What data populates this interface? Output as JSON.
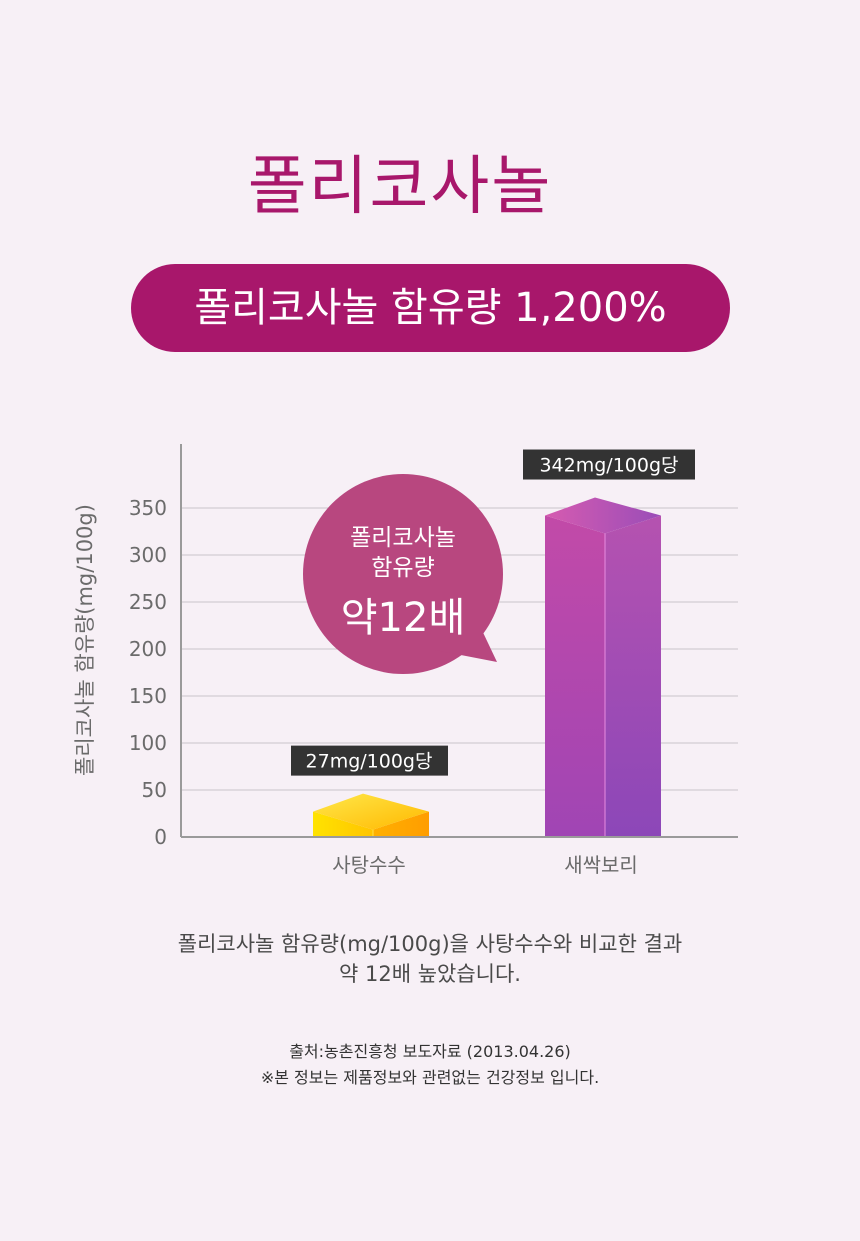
{
  "header": {
    "title": "폴리코사놀",
    "banner": "폴리코사놀 함유량 1,200%"
  },
  "chart_data": {
    "type": "bar",
    "ylabel": "폴리코사놀 함유량(mg/100g)",
    "ylim": [
      0,
      400
    ],
    "yticks": [
      0,
      50,
      100,
      150,
      200,
      250,
      300,
      350
    ],
    "grid": true,
    "categories": [
      "사탕수수",
      "새싹보리"
    ],
    "values": [
      27,
      342
    ],
    "value_labels": [
      "27mg/100g당",
      "342mg/100g당"
    ],
    "bar_colors": [
      "#ffb300",
      "#b34bb2"
    ]
  },
  "bubble": {
    "line1": "폴리코사놀",
    "line2": "함유량",
    "line3": "약12배"
  },
  "description": {
    "line1": "폴리코사놀 함유량(mg/100g)을 사탕수수와 비교한 결과",
    "line2": "약 12배 높았습니다."
  },
  "footnote": {
    "source": "출처:농촌진흥청 보도자료 (2013.04.26)",
    "disclaimer": "※본 정보는 제품정보와 관련없는 건강정보 입니다."
  },
  "colors": {
    "accent": "#a8176b",
    "bubble": "#b8477f",
    "label_bg": "#333333",
    "grid": "#c9c4c9",
    "axis": "#9a9a9a"
  }
}
